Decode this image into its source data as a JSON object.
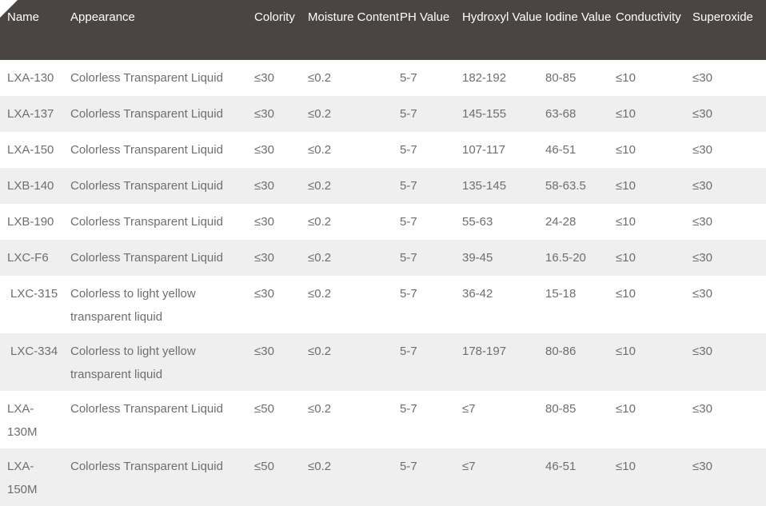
{
  "table": {
    "headers": [
      "Name",
      "Appearance",
      "Colority",
      "Moisture Content",
      "PH Value",
      "Hydroxyl Value",
      "Iodine Value",
      "Conductivity",
      "Superoxide"
    ],
    "rows": [
      [
        "LXA-130",
        "Colorless Transparent Liquid",
        "≤30",
        "≤0.2",
        "5-7",
        "182-192",
        "80-85",
        "≤10",
        "≤30"
      ],
      [
        "LXA-137",
        "Colorless Transparent Liquid",
        "≤30",
        "≤0.2",
        "5-7",
        "145-155",
        "63-68",
        "≤10",
        "≤30"
      ],
      [
        "LXA-150",
        "Colorless Transparent Liquid",
        "≤30",
        "≤0.2",
        "5-7",
        "107-117",
        "46-51",
        "≤10",
        "≤30"
      ],
      [
        "LXB-140",
        "Colorless Transparent Liquid",
        "≤30",
        "≤0.2",
        "5-7",
        "135-145",
        "58-63.5",
        "≤10",
        "≤30"
      ],
      [
        "LXB-190",
        "Colorless Transparent Liquid",
        "≤30",
        "≤0.2",
        "5-7",
        "55-63",
        "24-28",
        "≤10",
        "≤30"
      ],
      [
        "LXC-F6",
        "Colorless Transparent Liquid",
        "≤30",
        "≤0.2",
        "5-7",
        "39-45",
        "16.5-20",
        "≤10",
        "≤30"
      ],
      [
        "LXC-315",
        "Colorless to light yellow transparent liquid",
        "≤30",
        "≤0.2",
        "5-7",
        "36-42",
        "15-18",
        "≤10",
        "≤30"
      ],
      [
        "LXC-334",
        "Colorless to light yellow transparent liquid",
        "≤30",
        "≤0.2",
        "5-7",
        "178-197",
        "80-86",
        "≤10",
        "≤30"
      ],
      [
        "LXA-130M",
        "Colorless Transparent Liquid",
        "≤50",
        "≤0.2",
        "5-7",
        "≤7",
        "80-85",
        "≤10",
        "≤30"
      ],
      [
        "LXA-150M",
        "Colorless Transparent Liquid",
        "≤50",
        "≤0.2",
        "5-7",
        "≤7",
        "46-51",
        "≤10",
        "≤30"
      ]
    ]
  },
  "colors": {
    "header_bg": "#4a4542",
    "header_text": "#ffffff",
    "row_alt_bg": "#efefef",
    "cell_text": "#6e6e6e"
  }
}
